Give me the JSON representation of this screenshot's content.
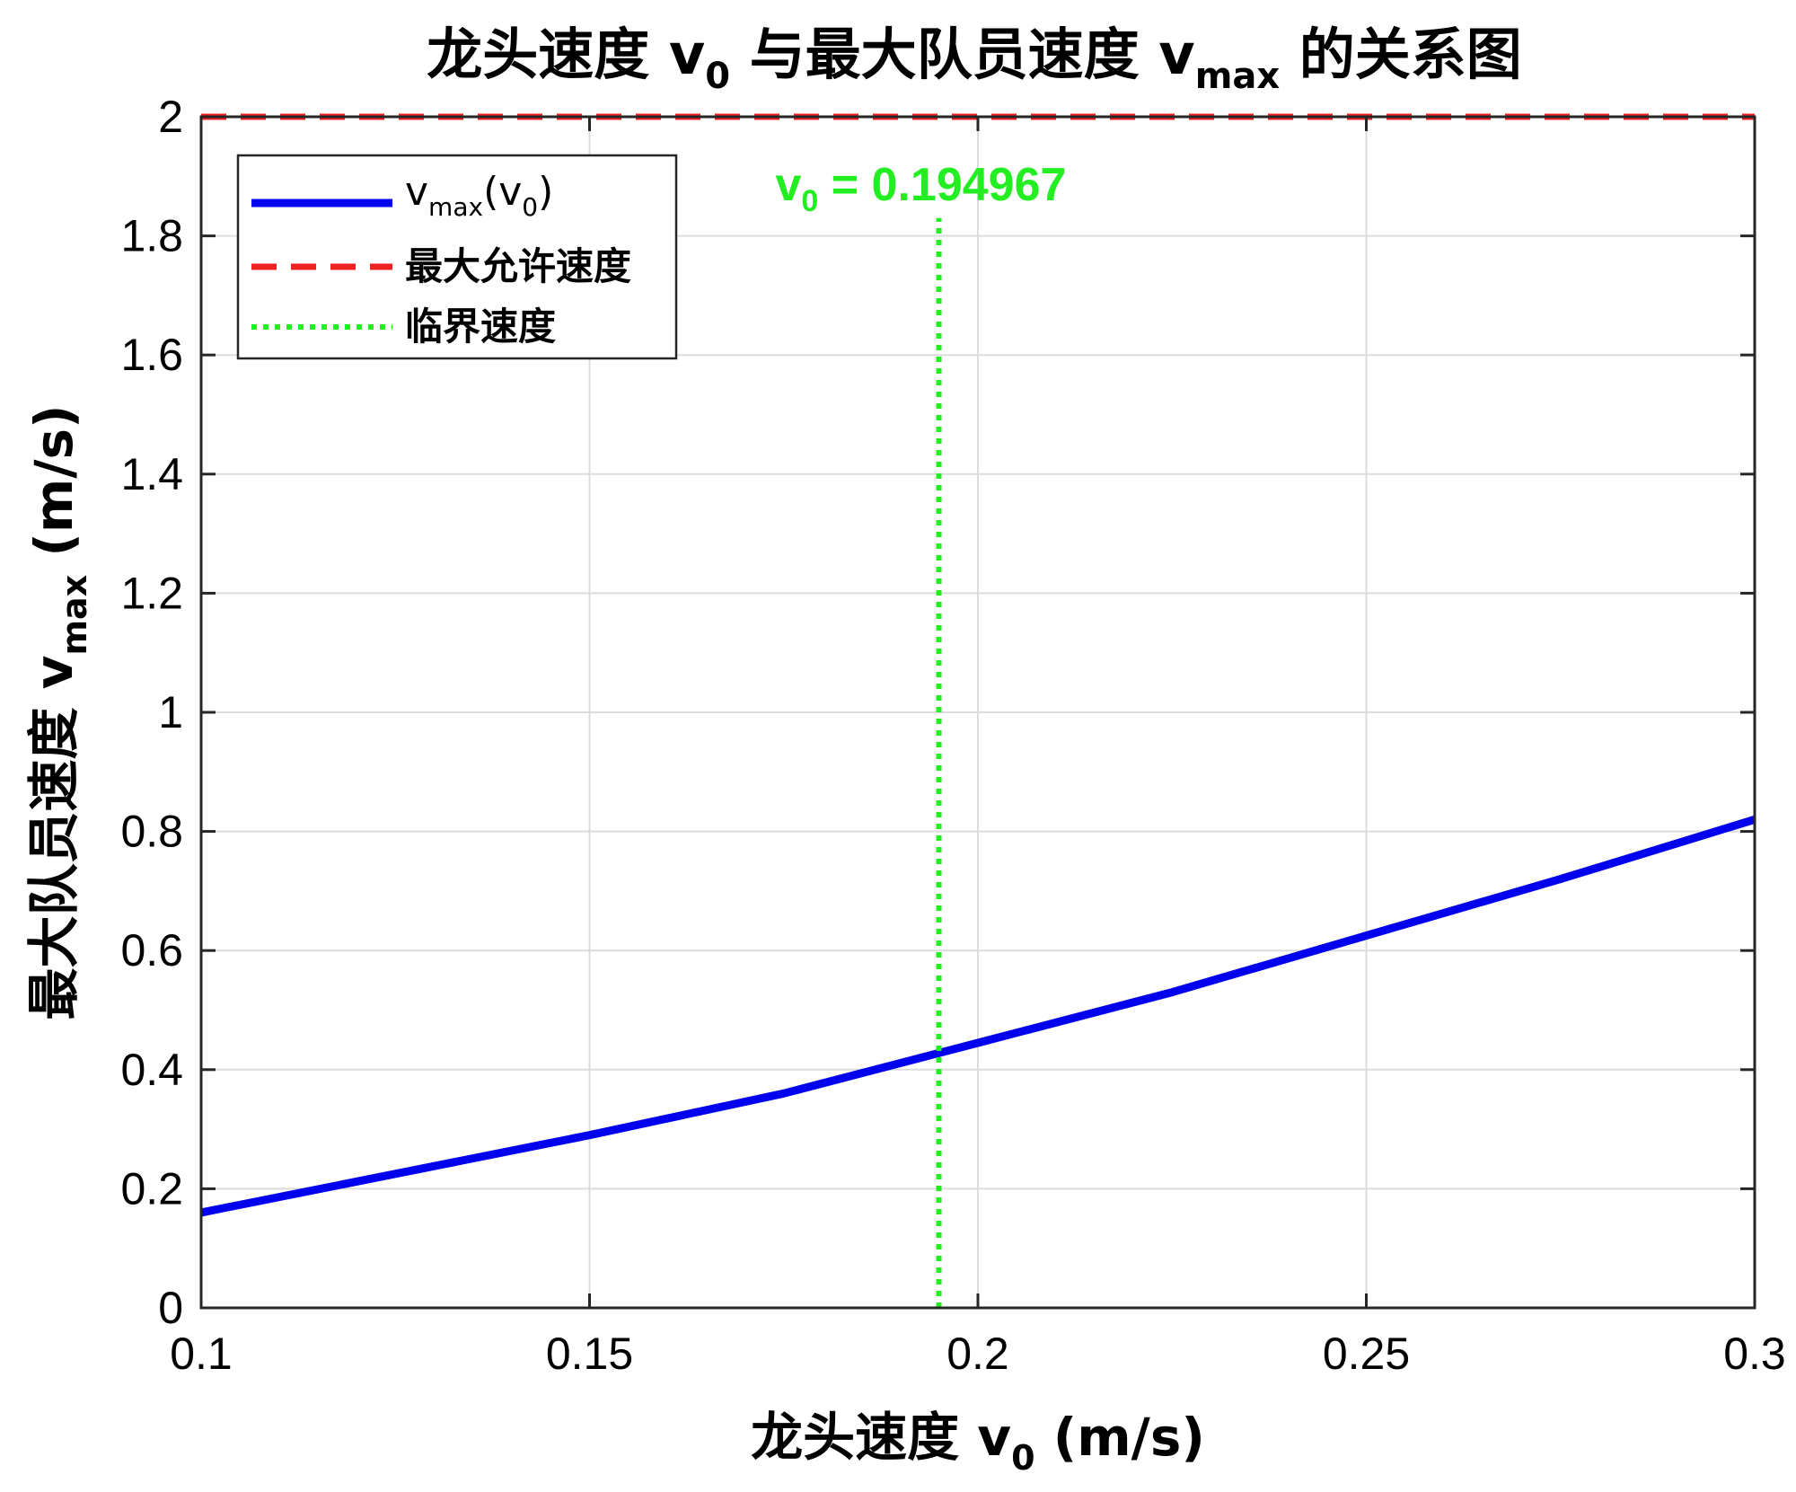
{
  "chart_data": {
    "type": "line",
    "title": {
      "prefix": "龙头速度 v",
      "prefix_sub": "0",
      "middle": " 与最大队员速度 v",
      "middle_sub": "max",
      "suffix": " 的关系图"
    },
    "xlabel": {
      "main": "龙头速度 v",
      "sub": "0",
      "unit": " (m/s)"
    },
    "ylabel": {
      "main": "最大队员速度 v",
      "sub": "max",
      "unit": " (m/s)"
    },
    "xlim": [
      0.1,
      0.3
    ],
    "ylim": [
      0,
      2
    ],
    "xticks": [
      0.1,
      0.15,
      0.2,
      0.25,
      0.3
    ],
    "xtick_labels": [
      "0.1",
      "0.15",
      "0.2",
      "0.25",
      "0.3"
    ],
    "yticks": [
      0,
      0.2,
      0.4,
      0.6,
      0.8,
      1,
      1.2,
      1.4,
      1.6,
      1.8,
      2
    ],
    "ytick_labels": [
      "0",
      "0.2",
      "0.4",
      "0.6",
      "0.8",
      "1",
      "1.2",
      "1.4",
      "1.6",
      "1.8",
      "2"
    ],
    "grid": true,
    "legend_position": "top-left",
    "series": [
      {
        "legend_main": "v",
        "legend_sub1": "max",
        "legend_mid": "(v",
        "legend_sub2": "0",
        "legend_end": ")",
        "style": "solid",
        "color": "#0000ee",
        "x": [
          0.1,
          0.125,
          0.15,
          0.175,
          0.2,
          0.225,
          0.25,
          0.275,
          0.3
        ],
        "y": [
          0.16,
          0.225,
          0.29,
          0.36,
          0.445,
          0.53,
          0.625,
          0.72,
          0.82
        ]
      },
      {
        "name": "最大允许速度",
        "style": "dashed",
        "color": "#ee2222",
        "x": [
          0.1,
          0.3
        ],
        "y": [
          2,
          2
        ]
      },
      {
        "name": "临界速度",
        "style": "dotted",
        "color": "#22ee22",
        "x": [
          0.194967,
          0.194967
        ],
        "y": [
          0,
          1.83
        ]
      }
    ],
    "annotation": {
      "prefix": "v",
      "sub": "0",
      "value_text": " = 0.194967",
      "color": "#22ee22",
      "x": 0.194967,
      "y": 1.92
    }
  }
}
